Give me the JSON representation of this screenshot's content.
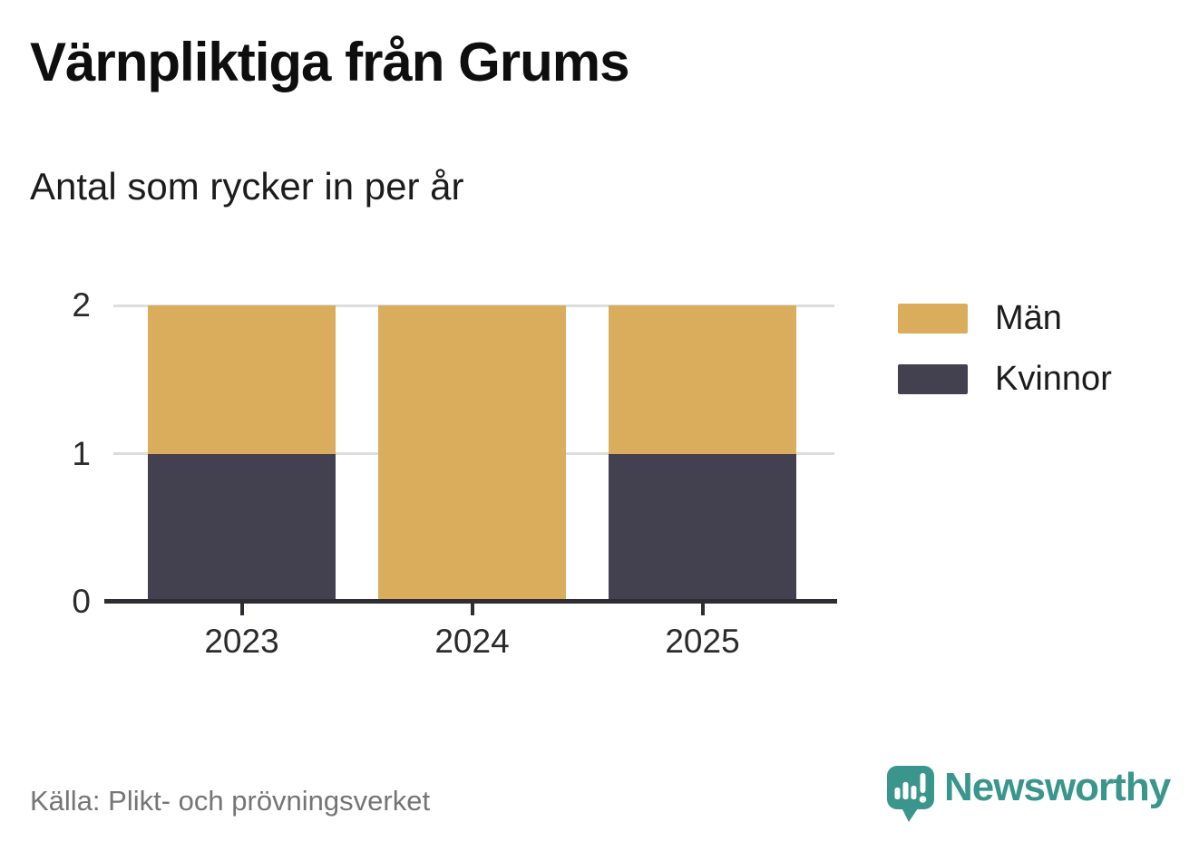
{
  "header": {
    "title": "Värnpliktiga från Grums",
    "subtitle": "Antal som rycker in per år"
  },
  "footer": {
    "source": "Källa: Plikt- och prövningsverket",
    "brand_name": "Newsworthy"
  },
  "legend": {
    "position": "right",
    "items": [
      {
        "label": "Män",
        "color": "#D9AD5C"
      },
      {
        "label": "Kvinnor",
        "color": "#434050"
      }
    ]
  },
  "colors": {
    "men_bar": "#D9AD5C",
    "women_bar": "#434050",
    "gridline": "#DDDDDD",
    "axis": "#2E2D33",
    "brand_teal": "#3A968C",
    "source_gray": "#757575"
  },
  "chart_data": {
    "type": "bar",
    "stacked": true,
    "title": "Värnpliktiga från Grums",
    "subtitle": "Antal som rycker in per år",
    "categories": [
      "2023",
      "2024",
      "2025"
    ],
    "series": [
      {
        "name": "Män",
        "key": "men",
        "color": "#D9AD5C",
        "values": [
          1,
          2,
          1
        ]
      },
      {
        "name": "Kvinnor",
        "key": "women",
        "color": "#434050",
        "values": [
          1,
          0,
          1
        ]
      }
    ],
    "totals": [
      2,
      2,
      2
    ],
    "ylim": [
      0,
      2
    ],
    "yticks": [
      0,
      1,
      2
    ],
    "grid": true,
    "legend_position": "right",
    "source": "Källa: Plikt- och prövningsverket"
  }
}
